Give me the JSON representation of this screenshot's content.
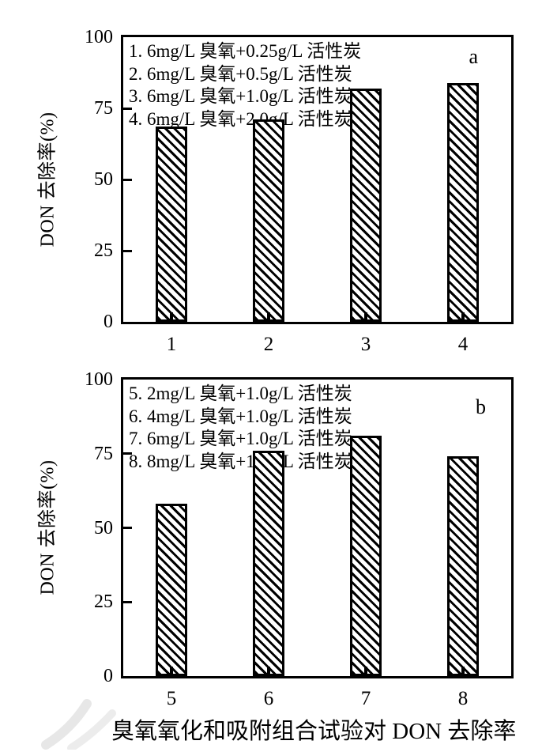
{
  "caption": "臭氧氧化和吸附组合试验对 DON 去除率",
  "chart_data": [
    {
      "type": "bar",
      "panel_label": "a",
      "ylabel": "DON 去除率(%)",
      "xlabel": "",
      "ylim": [
        0,
        100
      ],
      "yticks": [
        0,
        25,
        50,
        75,
        100
      ],
      "categories": [
        "1",
        "2",
        "3",
        "4"
      ],
      "values": [
        68.5,
        71,
        82,
        84
      ],
      "legend": [
        "1. 6mg/L 臭氧+0.25g/L 活性炭",
        "2. 6mg/L 臭氧+0.5g/L 活性炭",
        "3. 6mg/L 臭氧+1.0g/L 活性炭",
        "4. 6mg/L 臭氧+2.0g/L 活性炭"
      ],
      "legend_position": "top-left",
      "grid": false,
      "bar_fill": "black-diagonal-hatch",
      "bar_color": "#000000",
      "background_color": "#ffffff"
    },
    {
      "type": "bar",
      "panel_label": "b",
      "ylabel": "DON 去除率(%)",
      "xlabel": "",
      "ylim": [
        0,
        100
      ],
      "yticks": [
        0,
        25,
        50,
        75,
        100
      ],
      "categories": [
        "5",
        "6",
        "7",
        "8"
      ],
      "values": [
        58,
        76,
        81,
        74
      ],
      "legend": [
        "5. 2mg/L 臭氧+1.0g/L 活性炭",
        "6. 4mg/L 臭氧+1.0g/L 活性炭",
        "7. 6mg/L 臭氧+1.0g/L 活性炭",
        "8. 8mg/L 臭氧+1.0g/L 活性炭"
      ],
      "legend_position": "top-left",
      "grid": false,
      "bar_fill": "black-diagonal-hatch",
      "bar_color": "#000000",
      "background_color": "#ffffff"
    }
  ]
}
